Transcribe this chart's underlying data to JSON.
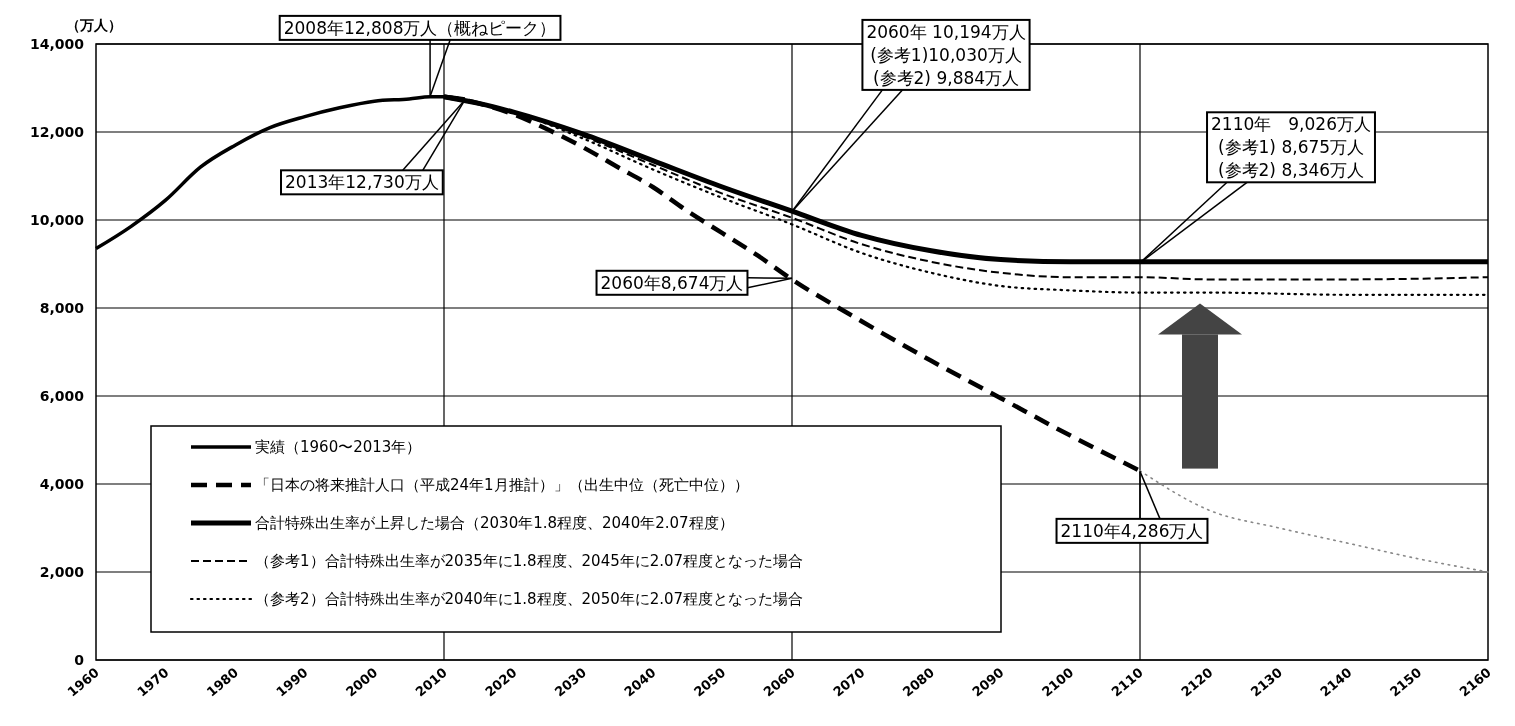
{
  "chart_data": {
    "type": "line",
    "ylabel": "（万人）",
    "xlim": [
      1960,
      2160
    ],
    "xticks": [
      1960,
      1970,
      1980,
      1990,
      2000,
      2010,
      2020,
      2030,
      2040,
      2050,
      2060,
      2070,
      2080,
      2090,
      2100,
      2110,
      2120,
      2130,
      2140,
      2150,
      2160
    ],
    "ylim": [
      0,
      14000
    ],
    "yticks": [
      {
        "value": 0,
        "label": "0"
      },
      {
        "value": 2000,
        "label": "2,000"
      },
      {
        "value": 4000,
        "label": "4,000"
      },
      {
        "value": 6000,
        "label": "6,000"
      },
      {
        "value": 8000,
        "label": "8,000"
      },
      {
        "value": 10000,
        "label": "10,000"
      },
      {
        "value": 12000,
        "label": "12,000"
      },
      {
        "value": 14000,
        "label": "14,000"
      }
    ],
    "grid": "y",
    "legend": "bottom left",
    "ref_lines": [
      {
        "axis": "x",
        "value": 2010,
        "color": "#000000"
      },
      {
        "axis": "x",
        "value": 2060,
        "color": "#000000"
      },
      {
        "axis": "x",
        "value": 2110,
        "color": "#000000"
      }
    ],
    "series": [
      {
        "name": "実績（1960〜2013年）",
        "color": "#000000",
        "line_style": "solid",
        "x": [
          1960,
          1965,
          1970,
          1975,
          1980,
          1985,
          1990,
          1995,
          2000,
          2005,
          2008,
          2010,
          2013
        ],
        "values": [
          9350,
          9850,
          10450,
          11200,
          11700,
          12100,
          12350,
          12550,
          12700,
          12750,
          12800,
          12800,
          12750
        ]
      },
      {
        "name": "「日本の将来推計人口（平成24年1月推計）」（出生中位（死亡中位））",
        "color": "#000000",
        "line_style": "dashed",
        "x": [
          2010,
          2015,
          2020,
          2025,
          2030,
          2035,
          2040,
          2045,
          2050,
          2055,
          2060,
          2070,
          2080,
          2090,
          2100,
          2110
        ],
        "values": [
          12800,
          12650,
          12400,
          12050,
          11650,
          11200,
          10750,
          10200,
          9700,
          9200,
          8650,
          7700,
          6800,
          5950,
          5100,
          4300
        ]
      },
      {
        "name": "合計特殊出生率が上昇した場合（2030年1.8程度、2040年2.07程度）",
        "color": "#000000",
        "line_style": "solid",
        "x": [
          2010,
          2015,
          2020,
          2030,
          2040,
          2050,
          2060,
          2070,
          2080,
          2090,
          2100,
          2110,
          2120,
          2140,
          2160
        ],
        "values": [
          12800,
          12650,
          12450,
          11950,
          11350,
          10750,
          10200,
          9650,
          9300,
          9100,
          9050,
          9050,
          9050,
          9050,
          9050
        ]
      },
      {
        "name": "（参考1）合計特殊出生率が2035年に1.8程度、2045年に2.07程度となった場合",
        "color": "#000000",
        "line_style": "dashed",
        "x": [
          2010,
          2015,
          2020,
          2030,
          2040,
          2050,
          2060,
          2070,
          2080,
          2090,
          2100,
          2110,
          2120,
          2140,
          2160
        ],
        "values": [
          12800,
          12650,
          12450,
          11900,
          11250,
          10600,
          10050,
          9450,
          9050,
          8800,
          8700,
          8700,
          8650,
          8650,
          8700
        ]
      },
      {
        "name": "（参考2）合計特殊出生率が2040年に1.8程度、2050年に2.07程度となった場合",
        "color": "#000000",
        "line_style": "dotted",
        "x": [
          2010,
          2015,
          2020,
          2030,
          2040,
          2050,
          2060,
          2070,
          2080,
          2090,
          2100,
          2110,
          2120,
          2140,
          2160
        ],
        "values": [
          12800,
          12650,
          12450,
          11850,
          11150,
          10500,
          9900,
          9250,
          8800,
          8500,
          8400,
          8350,
          8350,
          8300,
          8300
        ]
      },
      {
        "color": "#888888",
        "line_style": "dotted",
        "x": [
          2110,
          2120,
          2130,
          2140,
          2150,
          2160
        ],
        "values": [
          4300,
          3400,
          3000,
          2650,
          2300,
          2000
        ]
      }
    ],
    "annotations": [
      {
        "text": "2008年12,808万人（概ねピーク）",
        "x": 2008,
        "y": 12808
      },
      {
        "text": "2013年12,730万人",
        "x": 2013,
        "y": 12730
      },
      {
        "text": "2060年 10,194万人\n(参考1)10,030万人\n(参考2) 9,884万人",
        "x": 2060,
        "y": 10194
      },
      {
        "text": "2060年8,674万人",
        "x": 2060,
        "y": 8674
      },
      {
        "text": "2110年　9,026万人\n(参考1)  8,675万人\n(参考2)  8,346万人",
        "x": 2110,
        "y": 9026
      },
      {
        "text": "2110年4,286万人",
        "x": 2110,
        "y": 4286
      }
    ]
  }
}
